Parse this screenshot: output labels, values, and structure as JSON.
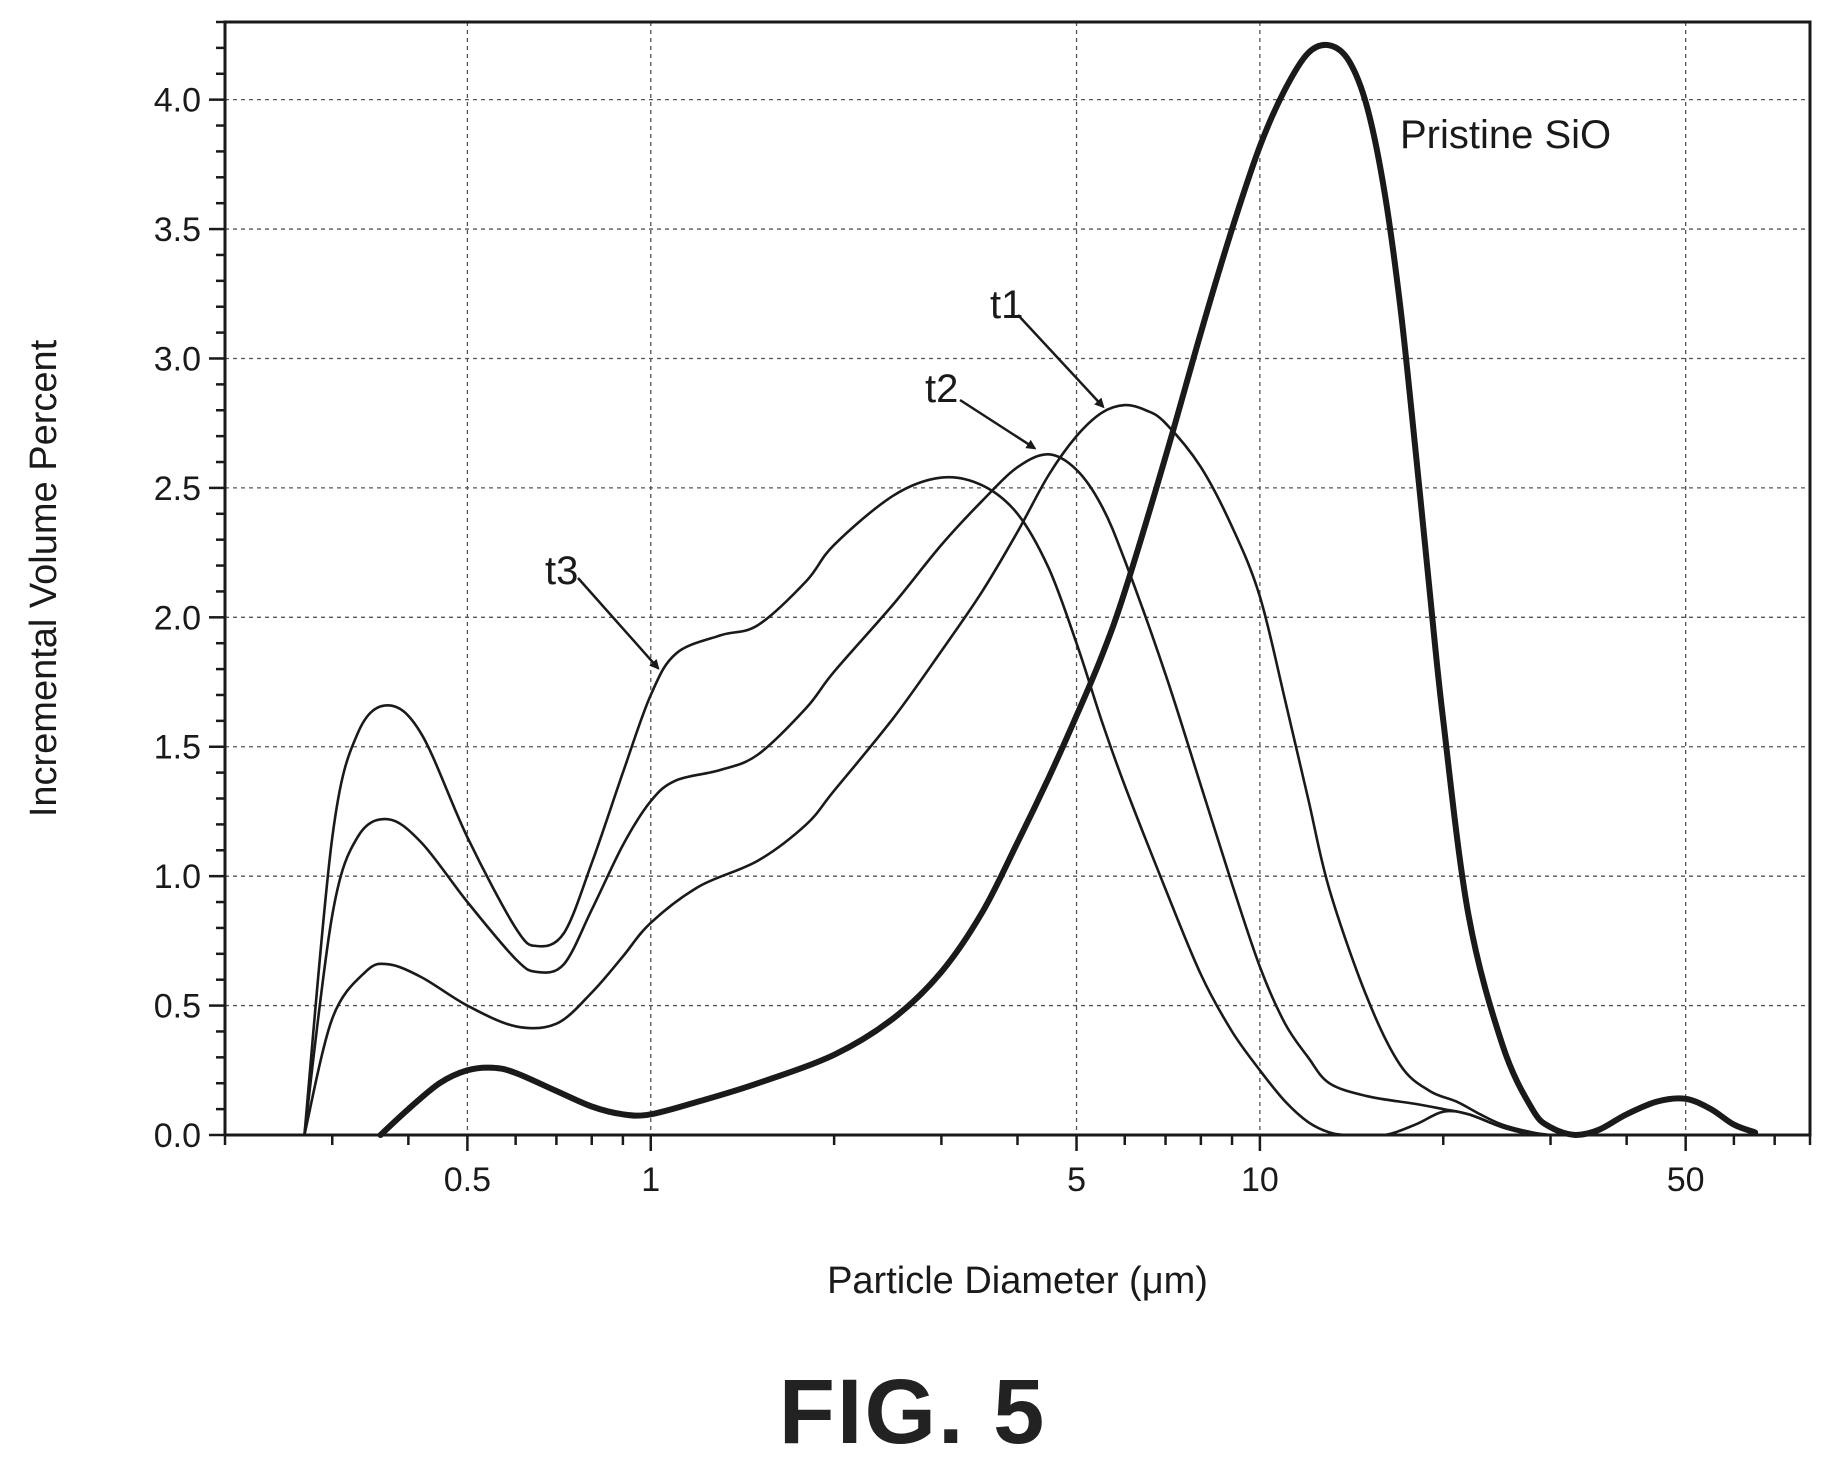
{
  "figure_label": "FIG. 5",
  "chart_data": {
    "type": "line",
    "xlabel": "Particle Diameter (μm)",
    "ylabel": "Incremental Volume Percent",
    "xscale": "log",
    "xlim": [
      0.2,
      80
    ],
    "ylim": [
      0,
      4.3
    ],
    "xticks": [
      0.5,
      1,
      5,
      10,
      50
    ],
    "xtick_labels": [
      "0.5",
      "1",
      "5",
      "10",
      "50"
    ],
    "yticks": [
      0.0,
      0.5,
      1.0,
      1.5,
      2.0,
      2.5,
      3.0,
      3.5,
      4.0
    ],
    "ytick_labels": [
      "0.0",
      "0.5",
      "1.0",
      "1.5",
      "2.0",
      "2.5",
      "3.0",
      "3.5",
      "4.0"
    ],
    "grid": true,
    "series": [
      {
        "name": "Pristine SiO",
        "bold": true,
        "points": [
          [
            0.36,
            0
          ],
          [
            0.4,
            0.1
          ],
          [
            0.45,
            0.2
          ],
          [
            0.5,
            0.25
          ],
          [
            0.55,
            0.26
          ],
          [
            0.6,
            0.24
          ],
          [
            0.7,
            0.17
          ],
          [
            0.8,
            0.11
          ],
          [
            0.9,
            0.08
          ],
          [
            1.0,
            0.08
          ],
          [
            1.2,
            0.13
          ],
          [
            1.5,
            0.2
          ],
          [
            2.0,
            0.31
          ],
          [
            2.5,
            0.45
          ],
          [
            3.0,
            0.63
          ],
          [
            3.5,
            0.86
          ],
          [
            4.0,
            1.13
          ],
          [
            4.5,
            1.38
          ],
          [
            5.0,
            1.62
          ],
          [
            5.5,
            1.85
          ],
          [
            6.0,
            2.1
          ],
          [
            7.0,
            2.62
          ],
          [
            8.0,
            3.1
          ],
          [
            9.0,
            3.5
          ],
          [
            10.0,
            3.82
          ],
          [
            11.0,
            4.04
          ],
          [
            12.0,
            4.18
          ],
          [
            13.0,
            4.21
          ],
          [
            14.0,
            4.15
          ],
          [
            15.0,
            3.97
          ],
          [
            16.0,
            3.65
          ],
          [
            17.0,
            3.2
          ],
          [
            18.0,
            2.65
          ],
          [
            19.0,
            2.1
          ],
          [
            20.0,
            1.6
          ],
          [
            22.0,
            0.85
          ],
          [
            25.0,
            0.35
          ],
          [
            28.0,
            0.1
          ],
          [
            30.0,
            0.03
          ],
          [
            33.0,
            0
          ],
          [
            36.0,
            0.02
          ],
          [
            40.0,
            0.08
          ],
          [
            45.0,
            0.13
          ],
          [
            50.0,
            0.14
          ],
          [
            55.0,
            0.1
          ],
          [
            60.0,
            0.04
          ],
          [
            65.0,
            0.01
          ]
        ]
      },
      {
        "name": "t1",
        "points": [
          [
            0.27,
            0
          ],
          [
            0.3,
            0.45
          ],
          [
            0.34,
            0.63
          ],
          [
            0.37,
            0.66
          ],
          [
            0.42,
            0.61
          ],
          [
            0.5,
            0.5
          ],
          [
            0.6,
            0.42
          ],
          [
            0.7,
            0.43
          ],
          [
            0.8,
            0.55
          ],
          [
            0.9,
            0.69
          ],
          [
            1.0,
            0.82
          ],
          [
            1.2,
            0.96
          ],
          [
            1.5,
            1.06
          ],
          [
            1.8,
            1.2
          ],
          [
            2.0,
            1.33
          ],
          [
            2.5,
            1.61
          ],
          [
            3.0,
            1.87
          ],
          [
            3.5,
            2.1
          ],
          [
            4.0,
            2.33
          ],
          [
            4.5,
            2.55
          ],
          [
            5.0,
            2.7
          ],
          [
            5.5,
            2.79
          ],
          [
            6.0,
            2.82
          ],
          [
            6.5,
            2.8
          ],
          [
            7.0,
            2.75
          ],
          [
            8.0,
            2.58
          ],
          [
            9.0,
            2.35
          ],
          [
            10.0,
            2.08
          ],
          [
            11.0,
            1.68
          ],
          [
            12.0,
            1.3
          ],
          [
            13.0,
            0.95
          ],
          [
            15.0,
            0.53
          ],
          [
            17.0,
            0.27
          ],
          [
            19.0,
            0.17
          ],
          [
            21.0,
            0.13
          ],
          [
            23.0,
            0.08
          ],
          [
            25.0,
            0.04
          ],
          [
            28.0,
            0.01
          ],
          [
            30.0,
            0
          ]
        ]
      },
      {
        "name": "t2",
        "points": [
          [
            0.27,
            0
          ],
          [
            0.3,
            0.85
          ],
          [
            0.33,
            1.15
          ],
          [
            0.37,
            1.22
          ],
          [
            0.42,
            1.13
          ],
          [
            0.5,
            0.9
          ],
          [
            0.6,
            0.68
          ],
          [
            0.65,
            0.63
          ],
          [
            0.72,
            0.66
          ],
          [
            0.8,
            0.87
          ],
          [
            0.9,
            1.12
          ],
          [
            1.0,
            1.29
          ],
          [
            1.1,
            1.37
          ],
          [
            1.3,
            1.41
          ],
          [
            1.5,
            1.47
          ],
          [
            1.8,
            1.65
          ],
          [
            2.0,
            1.79
          ],
          [
            2.5,
            2.05
          ],
          [
            3.0,
            2.28
          ],
          [
            3.5,
            2.45
          ],
          [
            4.0,
            2.58
          ],
          [
            4.5,
            2.63
          ],
          [
            5.0,
            2.57
          ],
          [
            5.5,
            2.43
          ],
          [
            6.0,
            2.22
          ],
          [
            7.0,
            1.78
          ],
          [
            8.0,
            1.35
          ],
          [
            9.0,
            0.97
          ],
          [
            10.0,
            0.65
          ],
          [
            11.0,
            0.43
          ],
          [
            12.0,
            0.3
          ],
          [
            13.0,
            0.2
          ],
          [
            15.0,
            0.15
          ],
          [
            18.0,
            0.12
          ],
          [
            20.0,
            0.1
          ],
          [
            22.0,
            0.08
          ],
          [
            25.0,
            0.03
          ],
          [
            28.0,
            0
          ]
        ]
      },
      {
        "name": "t3",
        "points": [
          [
            0.27,
            0
          ],
          [
            0.3,
            1.15
          ],
          [
            0.33,
            1.55
          ],
          [
            0.37,
            1.66
          ],
          [
            0.42,
            1.55
          ],
          [
            0.5,
            1.15
          ],
          [
            0.6,
            0.8
          ],
          [
            0.65,
            0.73
          ],
          [
            0.72,
            0.78
          ],
          [
            0.8,
            1.05
          ],
          [
            0.9,
            1.4
          ],
          [
            1.0,
            1.7
          ],
          [
            1.1,
            1.86
          ],
          [
            1.3,
            1.93
          ],
          [
            1.5,
            1.97
          ],
          [
            1.8,
            2.14
          ],
          [
            2.0,
            2.28
          ],
          [
            2.5,
            2.47
          ],
          [
            3.0,
            2.54
          ],
          [
            3.5,
            2.51
          ],
          [
            4.0,
            2.4
          ],
          [
            4.5,
            2.19
          ],
          [
            5.0,
            1.9
          ],
          [
            5.5,
            1.6
          ],
          [
            6.0,
            1.35
          ],
          [
            7.0,
            0.95
          ],
          [
            8.0,
            0.62
          ],
          [
            9.0,
            0.4
          ],
          [
            10.0,
            0.25
          ],
          [
            11.0,
            0.13
          ],
          [
            12.0,
            0.05
          ],
          [
            13.0,
            0.01
          ],
          [
            14.0,
            0
          ],
          [
            16.0,
            0
          ],
          [
            18.0,
            0.04
          ],
          [
            20.0,
            0.09
          ],
          [
            22.0,
            0.08
          ],
          [
            25.0,
            0.03
          ],
          [
            28.0,
            0
          ]
        ]
      }
    ],
    "annotations": [
      {
        "text": "Pristine SiO",
        "arrow": false
      },
      {
        "text": "t1",
        "arrow": true,
        "target": [
          5.7,
          2.79
        ]
      },
      {
        "text": "t2",
        "arrow": true,
        "target": [
          4.4,
          2.63
        ]
      },
      {
        "text": "t3",
        "arrow": true,
        "target": [
          1.06,
          1.78
        ]
      }
    ]
  }
}
